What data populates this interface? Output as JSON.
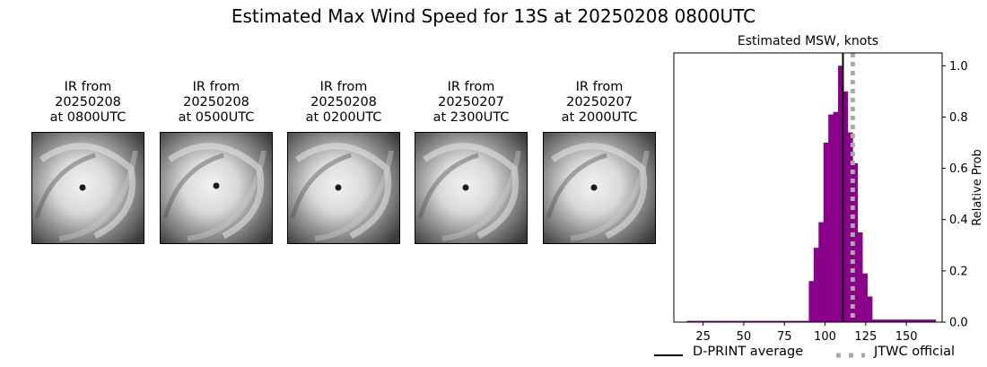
{
  "figure": {
    "title": "Estimated Max Wind Speed for 13S at 20250208 0800UTC"
  },
  "ir_images": [
    {
      "caption": "IR from\n20250208\nat 0800UTC",
      "eye_icon": "hurricane-eye-icon"
    },
    {
      "caption": "IR from\n20250208\nat 0500UTC",
      "eye_icon": "hurricane-eye-icon"
    },
    {
      "caption": "IR from\n20250208\nat 0200UTC",
      "eye_icon": "hurricane-eye-icon"
    },
    {
      "caption": "IR from\n20250207\nat 2300UTC",
      "eye_icon": "hurricane-eye-icon"
    },
    {
      "caption": "IR from\n20250207\nat 2000UTC",
      "eye_icon": "hurricane-eye-icon"
    }
  ],
  "chart_data": {
    "type": "bar",
    "title": "Estimated MSW, knots",
    "xlabel": "",
    "ylabel": "Relative Prob",
    "xlim": [
      7,
      172
    ],
    "ylim": [
      0,
      1.05
    ],
    "xticks": [
      25,
      50,
      75,
      100,
      125,
      150
    ],
    "yticks": [
      0.0,
      0.2,
      0.4,
      0.6,
      0.8,
      1.0
    ],
    "ytick_labels": [
      "0.0",
      "0.2",
      "0.4",
      "0.6",
      "0.8",
      "1.0"
    ],
    "grid": false,
    "bar_color": "#8b008b",
    "bin_width": 3,
    "bins": [
      {
        "x0": 15,
        "value": 0.005
      },
      {
        "x0": 18,
        "value": 0.005
      },
      {
        "x0": 21,
        "value": 0.005
      },
      {
        "x0": 24,
        "value": 0.005
      },
      {
        "x0": 27,
        "value": 0.005
      },
      {
        "x0": 30,
        "value": 0.005
      },
      {
        "x0": 33,
        "value": 0.005
      },
      {
        "x0": 36,
        "value": 0.005
      },
      {
        "x0": 39,
        "value": 0.005
      },
      {
        "x0": 42,
        "value": 0.005
      },
      {
        "x0": 45,
        "value": 0.005
      },
      {
        "x0": 48,
        "value": 0.005
      },
      {
        "x0": 51,
        "value": 0.005
      },
      {
        "x0": 54,
        "value": 0.005
      },
      {
        "x0": 57,
        "value": 0.005
      },
      {
        "x0": 60,
        "value": 0.005
      },
      {
        "x0": 63,
        "value": 0.005
      },
      {
        "x0": 66,
        "value": 0.005
      },
      {
        "x0": 69,
        "value": 0.005
      },
      {
        "x0": 72,
        "value": 0.005
      },
      {
        "x0": 75,
        "value": 0.005
      },
      {
        "x0": 78,
        "value": 0.005
      },
      {
        "x0": 81,
        "value": 0.005
      },
      {
        "x0": 84,
        "value": 0.005
      },
      {
        "x0": 87,
        "value": 0.005
      },
      {
        "x0": 90,
        "value": 0.16
      },
      {
        "x0": 93,
        "value": 0.29
      },
      {
        "x0": 96,
        "value": 0.39
      },
      {
        "x0": 99,
        "value": 0.7
      },
      {
        "x0": 102,
        "value": 0.81
      },
      {
        "x0": 105,
        "value": 0.82
      },
      {
        "x0": 108,
        "value": 1.0
      },
      {
        "x0": 111,
        "value": 0.9
      },
      {
        "x0": 114,
        "value": 0.74
      },
      {
        "x0": 117,
        "value": 0.62
      },
      {
        "x0": 120,
        "value": 0.35
      },
      {
        "x0": 123,
        "value": 0.19
      },
      {
        "x0": 126,
        "value": 0.1
      },
      {
        "x0": 129,
        "value": 0.01
      },
      {
        "x0": 132,
        "value": 0.01
      },
      {
        "x0": 135,
        "value": 0.01
      },
      {
        "x0": 138,
        "value": 0.01
      },
      {
        "x0": 141,
        "value": 0.01
      },
      {
        "x0": 144,
        "value": 0.01
      },
      {
        "x0": 147,
        "value": 0.01
      },
      {
        "x0": 150,
        "value": 0.01
      },
      {
        "x0": 153,
        "value": 0.01
      },
      {
        "x0": 156,
        "value": 0.01
      },
      {
        "x0": 159,
        "value": 0.01
      },
      {
        "x0": 162,
        "value": 0.01
      },
      {
        "x0": 165,
        "value": 0.01
      }
    ],
    "reference_lines": [
      {
        "name": "D-PRINT average",
        "x": 111,
        "color": "#000000",
        "style": "solid"
      },
      {
        "name": "JTWC official",
        "x": 117,
        "color": "#aaaaaa",
        "style": "dotted"
      }
    ],
    "legend": {
      "placement": "bottom",
      "entries": [
        "D-PRINT average",
        "JTWC official"
      ]
    }
  }
}
